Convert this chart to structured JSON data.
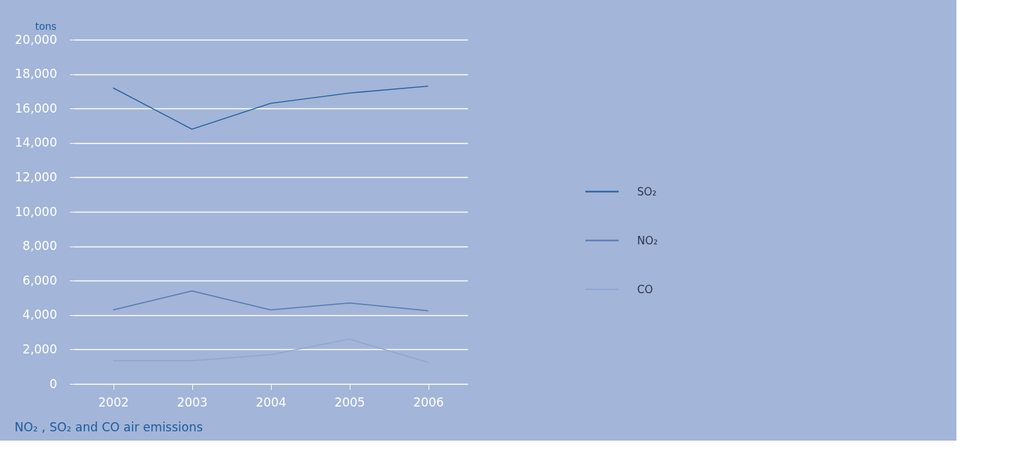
{
  "chart_data": {
    "type": "line",
    "title": "NO₂ , SO₂ and CO air emissions",
    "ylabel": "tons",
    "categories": [
      "2002",
      "2003",
      "2004",
      "2005",
      "2006"
    ],
    "series": [
      {
        "name": "SO₂",
        "color": "#1b5c9c",
        "values": [
          17200,
          14800,
          16300,
          16900,
          17300
        ]
      },
      {
        "name": "NO₂",
        "color": "#5479b0",
        "values": [
          4300,
          5400,
          4300,
          4700,
          4250
        ]
      },
      {
        "name": "CO",
        "color": "#8ea6d2",
        "values": [
          1350,
          1350,
          1700,
          2600,
          1250
        ]
      }
    ],
    "ylim": [
      0,
      20000
    ],
    "yticks": [
      0,
      {
        "value": 2000,
        "label": "2,000"
      },
      {
        "value": 4000,
        "label": "4,000"
      },
      {
        "value": 6000,
        "label": "6,000"
      },
      {
        "value": 8000,
        "label": "8,000"
      },
      {
        "value": 10000,
        "label": "10,000"
      },
      {
        "value": 12000,
        "label": "12,000"
      },
      {
        "value": 14000,
        "label": "14,000"
      },
      {
        "value": 16000,
        "label": "16,000"
      },
      {
        "value": 18000,
        "label": "18,000"
      },
      {
        "value": 20000,
        "label": "20,000"
      }
    ],
    "grid": "y",
    "legend": "right",
    "marker": "none",
    "line_style": "solid"
  }
}
